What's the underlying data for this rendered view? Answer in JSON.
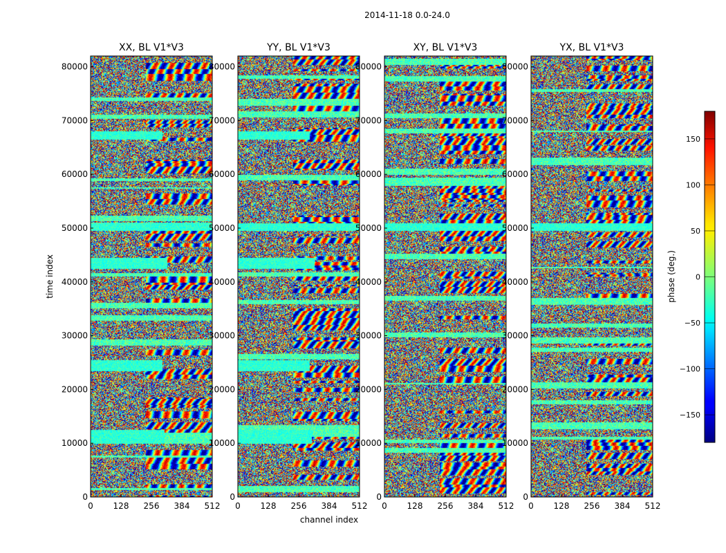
{
  "figure": {
    "suptitle": "2014-11-18 0.0-24.0"
  },
  "chart_data": {
    "type": "heatmap",
    "panels": [
      {
        "title": "XX, BL V1*V3",
        "pol": "XX"
      },
      {
        "title": "YY, BL V1*V3",
        "pol": "YY"
      },
      {
        "title": "XY, BL V1*V3",
        "pol": "XY"
      },
      {
        "title": "YX, BL V1*V3",
        "pol": "YX"
      }
    ],
    "xlabel": "channel index",
    "ylabel": "time index",
    "xlim": [
      0,
      512
    ],
    "ylim": [
      0,
      82000
    ],
    "xticks": [
      0,
      128,
      256,
      384,
      512
    ],
    "yticks": [
      0,
      10000,
      20000,
      30000,
      40000,
      50000,
      60000,
      70000,
      80000
    ],
    "colorbar": {
      "label": "phase (deg.)",
      "range": [
        -180,
        180
      ],
      "ticks": [
        -150,
        -100,
        -50,
        0,
        50,
        100,
        150
      ],
      "tick_labels": [
        "−150",
        "−100",
        "−50",
        "0",
        "50",
        "100",
        "150"
      ],
      "colormap": "jet"
    },
    "grid": false,
    "coherent_bands_time_index": [
      {
        "from": 10000,
        "to": 12500,
        "channels_to": 310,
        "panels": [
          "XX",
          "YY"
        ]
      },
      {
        "from": 23500,
        "to": 25500,
        "channels_to": 300,
        "panels": [
          "XX",
          "YY"
        ]
      },
      {
        "from": 42500,
        "to": 44500,
        "channels_to": 320,
        "panels": [
          "XX",
          "YY"
        ]
      },
      {
        "from": 49500,
        "to": 51000,
        "channels_to": 512,
        "panels": [
          "XX",
          "YY",
          "XY",
          "YX"
        ]
      },
      {
        "from": 66500,
        "to": 68000,
        "channels_to": 300,
        "panels": [
          "XX",
          "YY"
        ]
      }
    ]
  }
}
